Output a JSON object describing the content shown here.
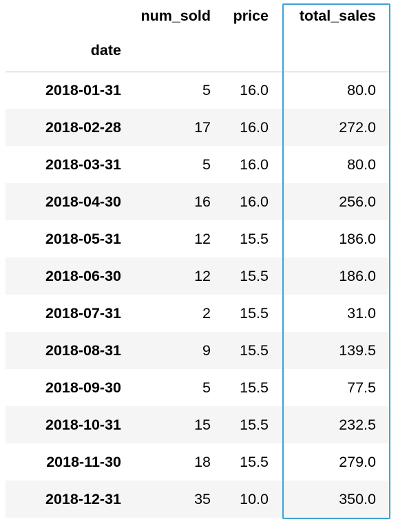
{
  "table": {
    "index_name": "date",
    "columns": [
      "num_sold",
      "price",
      "total_sales"
    ],
    "rows": [
      {
        "date": "2018-01-31",
        "num_sold": "5",
        "price": "16.0",
        "total_sales": "80.0"
      },
      {
        "date": "2018-02-28",
        "num_sold": "17",
        "price": "16.0",
        "total_sales": "272.0"
      },
      {
        "date": "2018-03-31",
        "num_sold": "5",
        "price": "16.0",
        "total_sales": "80.0"
      },
      {
        "date": "2018-04-30",
        "num_sold": "16",
        "price": "16.0",
        "total_sales": "256.0"
      },
      {
        "date": "2018-05-31",
        "num_sold": "12",
        "price": "15.5",
        "total_sales": "186.0"
      },
      {
        "date": "2018-06-30",
        "num_sold": "12",
        "price": "15.5",
        "total_sales": "186.0"
      },
      {
        "date": "2018-07-31",
        "num_sold": "2",
        "price": "15.5",
        "total_sales": "31.0"
      },
      {
        "date": "2018-08-31",
        "num_sold": "9",
        "price": "15.5",
        "total_sales": "139.5"
      },
      {
        "date": "2018-09-30",
        "num_sold": "5",
        "price": "15.5",
        "total_sales": "77.5"
      },
      {
        "date": "2018-10-31",
        "num_sold": "15",
        "price": "15.5",
        "total_sales": "232.5"
      },
      {
        "date": "2018-11-30",
        "num_sold": "18",
        "price": "15.5",
        "total_sales": "279.0"
      },
      {
        "date": "2018-12-31",
        "num_sold": "35",
        "price": "10.0",
        "total_sales": "350.0"
      }
    ]
  },
  "highlight": {
    "column": "total_sales",
    "color": "#3ea3d4"
  },
  "colors": {
    "stripe": "#f5f5f5",
    "header_rule": "#bdbdbd"
  }
}
